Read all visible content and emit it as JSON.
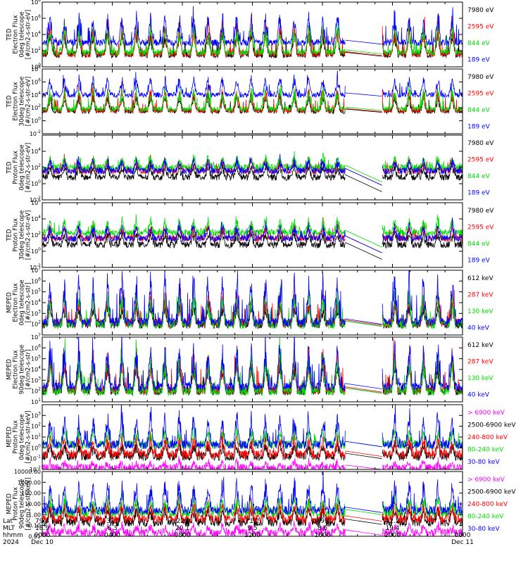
{
  "chart_data": [
    {
      "type": "line",
      "ylabel": [
        "TED",
        "Electron Flux",
        "0deg telescope",
        "[#/cm2-s-str-eV]"
      ],
      "yscale": "log",
      "yticks": [
        "10^0",
        "10^2",
        "10^4",
        "10^6",
        "10^8"
      ],
      "ylim": [
        1,
        100000000
      ],
      "series": [
        {
          "name": "7980 eV",
          "color": "#000000",
          "base": 1.5,
          "spread": 3.2
        },
        {
          "name": "2595 eV",
          "color": "#ff0000",
          "base": 1.6,
          "spread": 3.6
        },
        {
          "name": "844 eV",
          "color": "#00dd00",
          "base": 1.8,
          "spread": 3.0
        },
        {
          "name": "189 eV",
          "color": "#0000ff",
          "base": 3.0,
          "spread": 3.3
        }
      ]
    },
    {
      "type": "line",
      "ylabel": [
        "TED",
        "Electron Flux",
        "30deg telescope",
        "[#/cm2-s-str-eV]"
      ],
      "yscale": "log",
      "yticks": [
        "10^-2",
        "10^0",
        "10^2",
        "10^4",
        "10^6",
        "10^8"
      ],
      "ylim": [
        0.01,
        100000000
      ],
      "series": [
        {
          "name": "7980 eV",
          "color": "#000000",
          "base": 1.5,
          "spread": 2.5
        },
        {
          "name": "2595 eV",
          "color": "#ff0000",
          "base": 1.6,
          "spread": 3.4
        },
        {
          "name": "844 eV",
          "color": "#00dd00",
          "base": 1.8,
          "spread": 3.0
        },
        {
          "name": "189 eV",
          "color": "#0000ff",
          "base": 4.0,
          "spread": 2.6
        }
      ]
    },
    {
      "type": "line",
      "ylabel": [
        "TED",
        "Proton Flux",
        "0deg telescope",
        "[#/cm2-s-str-eV]"
      ],
      "yscale": "log",
      "yticks": [
        "10^-2",
        "10^0",
        "10^2",
        "10^4"
      ],
      "ylim": [
        0.01,
        1000000
      ],
      "series": [
        {
          "name": "7980 eV",
          "color": "#000000",
          "base": 0.8,
          "spread": 1.5
        },
        {
          "name": "2595 eV",
          "color": "#ff0000",
          "base": 1.6,
          "spread": 1.5
        },
        {
          "name": "844 eV",
          "color": "#00dd00",
          "base": 2.0,
          "spread": 1.3
        },
        {
          "name": "189 eV",
          "color": "#0000ff",
          "base": 1.6,
          "spread": 1.3
        }
      ]
    },
    {
      "type": "line",
      "ylabel": [
        "TED",
        "Proton Flux",
        "30deg telescope",
        "[#/cm2-s-str-eV]"
      ],
      "yscale": "log",
      "yticks": [
        "10^-2",
        "10^0",
        "10^2",
        "10^4",
        "10^6"
      ],
      "ylim": [
        0.01,
        1000000
      ],
      "series": [
        {
          "name": "7980 eV",
          "color": "#000000",
          "base": 0.8,
          "spread": 1.5
        },
        {
          "name": "2595 eV",
          "color": "#ff0000",
          "base": 1.6,
          "spread": 1.6
        },
        {
          "name": "844 eV",
          "color": "#00dd00",
          "base": 2.3,
          "spread": 1.5
        },
        {
          "name": "189 eV",
          "color": "#0000ff",
          "base": 1.6,
          "spread": 1.6
        }
      ]
    },
    {
      "type": "line",
      "ylabel": [
        "MEPED",
        "Electron Flux",
        "0deg telescope",
        "[#/cm2-s-str]"
      ],
      "yscale": "log",
      "yticks": [
        "10^2",
        "10^3",
        "10^4",
        "10^5",
        "10^6",
        "10^7"
      ],
      "ylim": [
        10,
        10000000
      ],
      "series": [
        {
          "name": "612 keV",
          "color": "#000000",
          "base": 2.0,
          "spread": 1.8
        },
        {
          "name": "287 keV",
          "color": "#ff0000",
          "base": 2.1,
          "spread": 2.6
        },
        {
          "name": "130 keV",
          "color": "#00dd00",
          "base": 2.0,
          "spread": 2.8
        },
        {
          "name": "40 keV",
          "color": "#0000ff",
          "base": 2.2,
          "spread": 4.2
        }
      ]
    },
    {
      "type": "line",
      "ylabel": [
        "MEPED",
        "Electron Flux",
        "90deg telescope",
        "[#/cm2-s-str]"
      ],
      "yscale": "log",
      "yticks": [
        "10^1",
        "10^2",
        "10^3",
        "10^4",
        "10^5",
        "10^6",
        "10^7"
      ],
      "ylim": [
        10,
        10000000
      ],
      "series": [
        {
          "name": "612 keV",
          "color": "#000000",
          "base": 2.0,
          "spread": 2.8
        },
        {
          "name": "287 keV",
          "color": "#ff0000",
          "base": 2.1,
          "spread": 3.4
        },
        {
          "name": "130 keV",
          "color": "#00dd00",
          "base": 2.0,
          "spread": 3.4
        },
        {
          "name": "40 keV",
          "color": "#0000ff",
          "base": 2.4,
          "spread": 3.6
        }
      ]
    },
    {
      "type": "line",
      "ylabel": [
        "MEPED",
        "Proton Flux",
        "0deg telescope",
        "[#/cm2-s-str-keV]"
      ],
      "yscale": "log",
      "yticks": [
        "10^-2",
        "10^-1",
        "10^0",
        "10^1",
        "10^2",
        "10^3"
      ],
      "ylim": [
        0.01,
        10000
      ],
      "series": [
        {
          "name": "> 6900 keV",
          "color": "#ff00ff",
          "base": -1.9,
          "spread": 0.6
        },
        {
          "name": "2500-6900 keV",
          "color": "#000000",
          "base": -0.8,
          "spread": 1.2
        },
        {
          "name": "240-800 keV",
          "color": "#ff0000",
          "base": -0.6,
          "spread": 1.6
        },
        {
          "name": "80-240 keV",
          "color": "#00dd00",
          "base": 0.3,
          "spread": 1.4
        },
        {
          "name": "30-80 keV",
          "color": "#0000ff",
          "base": 0.3,
          "spread": 2.8
        }
      ]
    },
    {
      "type": "line",
      "ylabel": [
        "MEPED",
        "Proton Flux",
        "90deg telescope",
        "[#/cm2-s-str-keV]"
      ],
      "yscale": "log",
      "yticks": [
        "0.01",
        "0.10",
        "1.00",
        "10.00",
        "100.00",
        "1000.00",
        "10000.00"
      ],
      "ylim": [
        0.01,
        10000
      ],
      "series": [
        {
          "name": "> 6900 keV",
          "color": "#ff00ff",
          "base": -1.7,
          "spread": 0.7
        },
        {
          "name": "2500-6900 keV",
          "color": "#000000",
          "base": -0.7,
          "spread": 1.3
        },
        {
          "name": "240-800 keV",
          "color": "#ff0000",
          "base": -0.4,
          "spread": 1.5
        },
        {
          "name": "80-240 keV",
          "color": "#00dd00",
          "base": 0.2,
          "spread": 1.4
        },
        {
          "name": "30-80 keV",
          "color": "#0000ff",
          "base": 0.4,
          "spread": 2.6
        }
      ]
    }
  ],
  "xaxis": {
    "row_labels": [
      "Lat",
      "MLT",
      "hhmm",
      "2024"
    ],
    "columns": [
      {
        "lat": "79.3",
        "mlt": "18.9",
        "hhmm": "0000",
        "date": "Dec 10"
      },
      {
        "lat": "-31.7",
        "mlt": "6.3",
        "hhmm": "0400",
        "date": ""
      },
      {
        "lat": "-22.0",
        "mlt": "20.1",
        "hhmm": "0800",
        "date": ""
      },
      {
        "lat": "71.2",
        "mlt": "9.5",
        "hhmm": "1200",
        "date": ""
      },
      {
        "lat": "-69.1",
        "mlt": "8.6",
        "hhmm": "1600",
        "date": ""
      },
      {
        "lat": "42.2",
        "mlt": "19.4",
        "hhmm": "2000",
        "date": ""
      },
      {
        "lat": "",
        "mlt": "",
        "hhmm": "0000",
        "date": "Dec 11"
      }
    ],
    "data_gap_hours": [
      17.3,
      19.4
    ],
    "xlim_hours": [
      0,
      24
    ]
  }
}
